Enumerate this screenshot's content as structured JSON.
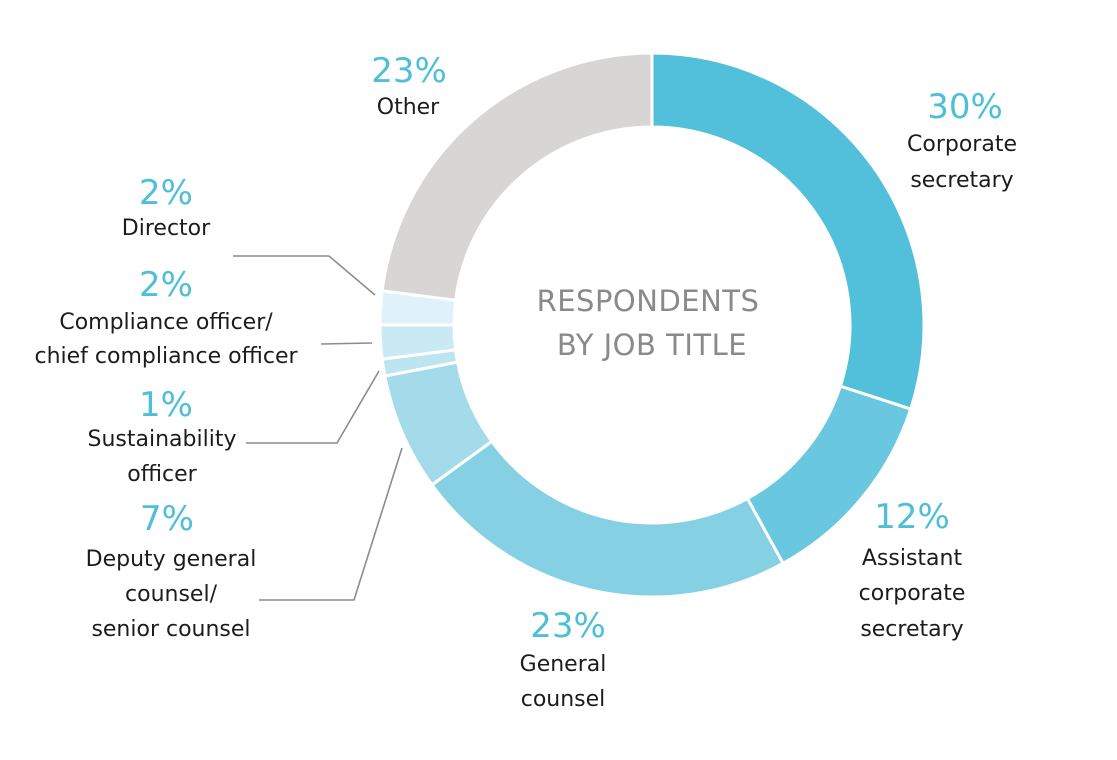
{
  "chart_data": {
    "type": "pie",
    "title_lines": [
      "RESPONDENTS",
      "BY JOB TITLE"
    ],
    "slices": [
      {
        "label_lines": [
          "Corporate",
          "secretary"
        ],
        "value": 30,
        "value_label": "30%",
        "color": "#52c0db"
      },
      {
        "label_lines": [
          "Assistant",
          "corporate",
          "secretary"
        ],
        "value": 12,
        "value_label": "12%",
        "color": "#69c8df"
      },
      {
        "label_lines": [
          "General",
          "counsel"
        ],
        "value": 23,
        "value_label": "23%",
        "color": "#86d0e4"
      },
      {
        "label_lines": [
          "Deputy general",
          "counsel/",
          "senior counsel"
        ],
        "value": 7,
        "value_label": "7%",
        "color": "#a4dbeb"
      },
      {
        "label_lines": [
          "Sustainability",
          "officer"
        ],
        "value": 1,
        "value_label": "1%",
        "color": "#bde5f1"
      },
      {
        "label_lines": [
          "Compliance officer/",
          "chief compliance officer"
        ],
        "value": 2,
        "value_label": "2%",
        "color": "#c9eaf4"
      },
      {
        "label_lines": [
          "Director"
        ],
        "value": 2,
        "value_label": "2%",
        "color": "#dff2f9"
      },
      {
        "label_lines": [
          "Other"
        ],
        "value": 23,
        "value_label": "23%",
        "color": "#d8d6d4"
      }
    ]
  }
}
